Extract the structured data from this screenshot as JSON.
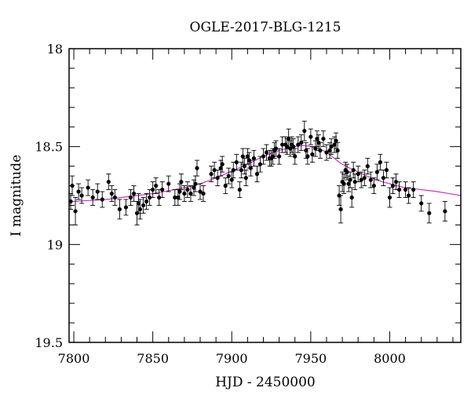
{
  "chart_data": {
    "type": "scatter",
    "title": "OGLE-2017-BLG-1215",
    "xlabel": "HJD - 2450000",
    "ylabel": "I magnitude",
    "xlim": [
      7797,
      8045
    ],
    "ylim": [
      19.5,
      18.0
    ],
    "y_inverted": true,
    "grid": false,
    "x_major_ticks": [
      7800,
      7850,
      7900,
      7950,
      8000
    ],
    "x_tick_labels": [
      "7800",
      "7850",
      "7900",
      "7950",
      "8000"
    ],
    "x_minor_step": 10,
    "y_major_ticks": [
      18.0,
      18.5,
      19.0,
      19.5
    ],
    "y_tick_labels": [
      "18",
      "18.5",
      "19",
      "19.5"
    ],
    "y_minor_step": 0.1,
    "colors": {
      "data": "#000000",
      "model": "#cc33cc"
    },
    "series": [
      {
        "kind": "points_with_errorbars",
        "x": [
          7798,
          7799,
          7801,
          7803,
          7805,
          7809,
          7812,
          7815,
          7818,
          7822,
          7824,
          7826,
          7829,
          7833,
          7836,
          7838,
          7840,
          7841,
          7842,
          7844,
          7846,
          7848,
          7850,
          7852,
          7854,
          7856,
          7860,
          7864,
          7866,
          7867,
          7868,
          7870,
          7872,
          7874,
          7876,
          7877,
          7878,
          7880,
          7882,
          7887,
          7889,
          7891,
          7893,
          7894,
          7896,
          7898,
          7900,
          7901,
          7903,
          7905,
          7906,
          7907,
          7908,
          7909,
          7910,
          7911,
          7912,
          7914,
          7916,
          7918,
          7920,
          7922,
          7924,
          7925,
          7926,
          7927,
          7928,
          7930,
          7932,
          7934,
          7935,
          7936,
          7937,
          7938,
          7939,
          7940,
          7942,
          7944,
          7946,
          7947,
          7948,
          7950,
          7951,
          7953,
          7954,
          7955,
          7956,
          7958,
          7960,
          7962,
          7963,
          7965,
          7966,
          7967,
          7968,
          7969,
          7970,
          7971,
          7972,
          7973,
          7974,
          7975,
          7976,
          7977,
          7978,
          7980,
          7982,
          7984,
          7986,
          7988,
          7990,
          7992,
          7994,
          7996,
          7998,
          8000,
          8002,
          8004,
          8006,
          8010,
          8012,
          8015,
          8020,
          8025,
          8035
        ],
        "y": [
          18.78,
          18.7,
          18.83,
          18.73,
          18.75,
          18.71,
          18.76,
          18.73,
          18.77,
          18.68,
          18.74,
          18.76,
          18.82,
          18.81,
          18.76,
          18.74,
          18.84,
          18.79,
          18.82,
          18.8,
          18.78,
          18.76,
          18.72,
          18.7,
          18.76,
          18.72,
          18.69,
          18.76,
          18.76,
          18.73,
          18.68,
          18.74,
          18.72,
          18.74,
          18.71,
          18.69,
          18.61,
          18.73,
          18.74,
          18.64,
          18.62,
          18.66,
          18.61,
          18.59,
          18.7,
          18.65,
          18.67,
          18.62,
          18.58,
          18.72,
          18.62,
          18.55,
          18.6,
          18.66,
          18.55,
          18.57,
          18.61,
          18.56,
          18.64,
          18.59,
          18.55,
          18.53,
          18.56,
          18.56,
          18.55,
          18.52,
          18.51,
          18.55,
          18.49,
          18.49,
          18.5,
          18.46,
          18.51,
          18.49,
          18.5,
          18.55,
          18.49,
          18.48,
          18.42,
          18.52,
          18.55,
          18.45,
          18.54,
          18.51,
          18.46,
          18.48,
          18.52,
          18.46,
          18.53,
          18.52,
          18.5,
          18.49,
          18.47,
          18.52,
          18.75,
          18.82,
          18.68,
          18.69,
          18.62,
          18.63,
          18.69,
          18.67,
          18.76,
          18.62,
          18.68,
          18.64,
          18.67,
          18.66,
          18.6,
          18.67,
          18.7,
          18.63,
          18.58,
          18.66,
          18.62,
          18.76,
          18.7,
          18.68,
          18.72,
          18.72,
          18.75,
          18.72,
          18.79,
          18.84,
          18.83
        ],
        "err": [
          0.04,
          0.05,
          0.07,
          0.04,
          0.04,
          0.04,
          0.04,
          0.04,
          0.04,
          0.04,
          0.04,
          0.04,
          0.05,
          0.04,
          0.04,
          0.04,
          0.06,
          0.05,
          0.05,
          0.04,
          0.04,
          0.04,
          0.04,
          0.04,
          0.04,
          0.04,
          0.04,
          0.04,
          0.04,
          0.04,
          0.04,
          0.04,
          0.04,
          0.04,
          0.04,
          0.04,
          0.04,
          0.04,
          0.04,
          0.04,
          0.04,
          0.04,
          0.04,
          0.04,
          0.04,
          0.04,
          0.04,
          0.04,
          0.04,
          0.04,
          0.04,
          0.04,
          0.04,
          0.04,
          0.04,
          0.04,
          0.04,
          0.04,
          0.04,
          0.04,
          0.04,
          0.04,
          0.04,
          0.04,
          0.04,
          0.04,
          0.04,
          0.04,
          0.04,
          0.04,
          0.04,
          0.05,
          0.04,
          0.04,
          0.04,
          0.04,
          0.04,
          0.04,
          0.05,
          0.04,
          0.04,
          0.04,
          0.04,
          0.04,
          0.04,
          0.04,
          0.04,
          0.04,
          0.04,
          0.04,
          0.04,
          0.04,
          0.04,
          0.04,
          0.05,
          0.07,
          0.05,
          0.05,
          0.04,
          0.04,
          0.04,
          0.04,
          0.05,
          0.04,
          0.04,
          0.04,
          0.04,
          0.04,
          0.04,
          0.04,
          0.04,
          0.04,
          0.04,
          0.04,
          0.04,
          0.05,
          0.04,
          0.04,
          0.04,
          0.04,
          0.04,
          0.04,
          0.04,
          0.05,
          0.05
        ]
      },
      {
        "kind": "model_curve",
        "x": [
          7797,
          7800,
          7810,
          7820,
          7830,
          7840,
          7850,
          7860,
          7870,
          7880,
          7890,
          7900,
          7910,
          7920,
          7930,
          7935,
          7940,
          7945,
          7950,
          7955,
          7960,
          7965,
          7970,
          7980,
          7990,
          8000,
          8010,
          8020,
          8030,
          8045
        ],
        "y": [
          18.78,
          18.78,
          18.775,
          18.77,
          18.76,
          18.75,
          18.74,
          18.725,
          18.71,
          18.69,
          18.66,
          18.625,
          18.59,
          18.55,
          18.52,
          18.51,
          18.5,
          18.495,
          18.5,
          18.51,
          18.53,
          18.56,
          18.59,
          18.63,
          18.665,
          18.69,
          18.71,
          18.72,
          18.73,
          18.75
        ]
      }
    ]
  }
}
